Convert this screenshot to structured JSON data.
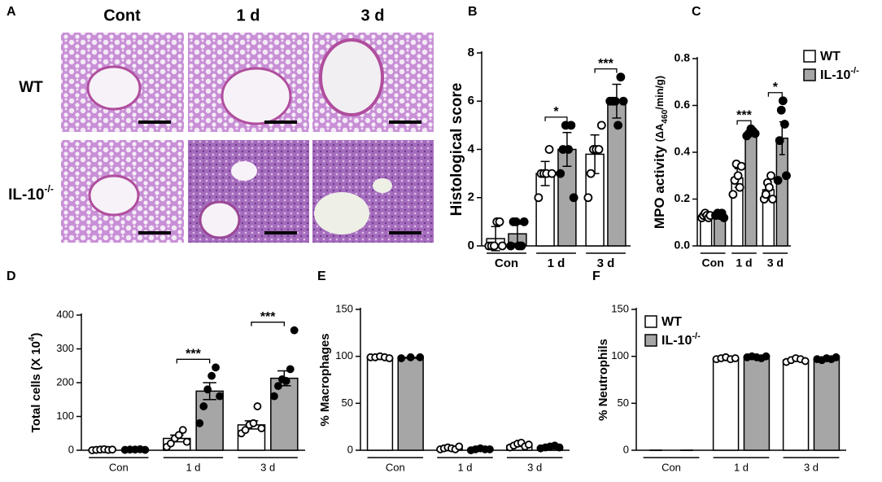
{
  "histology": {
    "panel_label": "A",
    "columns": [
      "Cont",
      "1 d",
      "3 d"
    ],
    "rows": [
      {
        "name": "WT"
      },
      {
        "name": "IL-10",
        "name_sup": "-/-"
      }
    ]
  },
  "chart_data": [
    {
      "type": "bar",
      "panel_label": "B",
      "ylabel": [
        {
          "text": "Histological score"
        }
      ],
      "categories": [
        "Con",
        "1 d",
        "3 d"
      ],
      "ylim": [
        0,
        8
      ],
      "yticks": [
        0,
        2,
        4,
        6,
        8
      ],
      "series": [
        {
          "name": "WT",
          "color": "#ffffff",
          "values": [
            0.3,
            3.0,
            3.8
          ],
          "errors": [
            0.5,
            0.5,
            0.8
          ],
          "points": [
            [
              0,
              0,
              0,
              1,
              1,
              0
            ],
            [
              2,
              3,
              3,
              3,
              4,
              3
            ],
            [
              2,
              3,
              4,
              4,
              4,
              5
            ]
          ]
        },
        {
          "name": "IL-10",
          "name_sup": "-/-",
          "color": "#a6a6a6",
          "values": [
            0.5,
            4.0,
            6.0
          ],
          "errors": [
            0.4,
            0.7,
            0.7
          ],
          "points": [
            [
              0,
              1,
              1,
              0,
              0,
              1
            ],
            [
              3,
              4,
              5,
              4,
              5,
              2
            ],
            [
              6,
              6,
              6,
              5,
              7,
              6
            ]
          ]
        }
      ],
      "annotations": [
        {
          "group": 1,
          "text": "*"
        },
        {
          "group": 2,
          "text": "***"
        }
      ],
      "legend": false
    },
    {
      "type": "bar",
      "panel_label": "C",
      "ylabel": [
        {
          "text": "MPO activity "
        },
        {
          "text": "(ΔA",
          "style": "small"
        },
        {
          "text": "460",
          "style": "sub"
        },
        {
          "text": "/min/g)",
          "style": "small"
        }
      ],
      "categories": [
        "Con",
        "1 d",
        "3 d"
      ],
      "ylim": [
        0,
        0.8
      ],
      "yticks": [
        {
          "value": 0,
          "label": "0.0"
        },
        0.2,
        0.4,
        0.6,
        0.8
      ],
      "series": [
        {
          "name": "WT",
          "color": "#ffffff",
          "values": [
            0.13,
            0.29,
            0.24
          ],
          "errors": [
            0.01,
            0.04,
            0.03
          ],
          "points": [
            [
              0.12,
              0.13,
              0.14,
              0.13,
              0.12,
              0.13
            ],
            [
              0.22,
              0.28,
              0.35,
              0.3,
              0.25,
              0.34
            ],
            [
              0.2,
              0.22,
              0.27,
              0.25,
              0.3,
              0.2
            ]
          ]
        },
        {
          "name": "IL-10",
          "name_sup": "-/-",
          "color": "#a6a6a6",
          "values": [
            0.135,
            0.48,
            0.46
          ],
          "errors": [
            0.01,
            0.01,
            0.07
          ],
          "points": [
            [
              0.13,
              0.14,
              0.13,
              0.14,
              0.12
            ],
            [
              0.47,
              0.48,
              0.5,
              0.49,
              0.48
            ],
            [
              0.28,
              0.45,
              0.58,
              0.62,
              0.52,
              0.3
            ]
          ]
        }
      ],
      "annotations": [
        {
          "group": 1,
          "text": "***"
        },
        {
          "group": 2,
          "text": "*"
        }
      ],
      "legend": true
    },
    {
      "type": "bar",
      "panel_label": "D",
      "ylabel": [
        {
          "text": "Total cells (X 10"
        },
        {
          "text": "4",
          "style": "sup"
        },
        {
          "text": ")"
        }
      ],
      "categories": [
        "Con",
        "1 d",
        "3 d"
      ],
      "ylim": [
        0,
        400
      ],
      "yticks": [
        0,
        100,
        200,
        300,
        400
      ],
      "series": [
        {
          "name": "WT",
          "color": "#ffffff",
          "values": [
            2,
            35,
            75
          ],
          "errors": [
            1,
            10,
            12
          ],
          "points": [
            [
              0,
              1,
              2,
              3,
              1,
              2
            ],
            [
              10,
              20,
              35,
              45,
              60,
              25
            ],
            [
              50,
              60,
              75,
              80,
              130,
              65
            ]
          ]
        },
        {
          "name": "IL-10",
          "name_sup": "-/-",
          "color": "#a6a6a6",
          "values": [
            2,
            175,
            213
          ],
          "errors": [
            1,
            25,
            22
          ],
          "points": [
            [
              1,
              2,
              2,
              3,
              1
            ],
            [
              80,
              130,
              180,
              220,
              245,
              160
            ],
            [
              160,
              190,
              210,
              205,
              240,
              355
            ]
          ]
        }
      ],
      "annotations": [
        {
          "group": 1,
          "text": "***"
        },
        {
          "group": 2,
          "text": "***"
        }
      ],
      "legend": false
    },
    {
      "type": "bar",
      "panel_label": "E",
      "ylabel": [
        {
          "text": "% Macrophages"
        }
      ],
      "categories": [
        "Con",
        "1 d",
        "3 d"
      ],
      "ylim": [
        0,
        150
      ],
      "yticks": [
        0,
        50,
        100,
        150
      ],
      "series": [
        {
          "name": "WT",
          "color": "#ffffff",
          "values": [
            99,
            2,
            5
          ],
          "errors": [
            0.5,
            0.6,
            1
          ],
          "points": [
            [
              99,
              99,
              100,
              99,
              98
            ],
            [
              1,
              2,
              3,
              2,
              1,
              4
            ],
            [
              3,
              5,
              7,
              8,
              4,
              6
            ]
          ]
        },
        {
          "name": "IL-10",
          "name_sup": "-/-",
          "color": "#a6a6a6",
          "values": [
            98.5,
            1,
            3
          ],
          "errors": [
            0.4,
            0.4,
            0.6
          ],
          "points": [
            [
              98,
              99,
              99
            ],
            [
              0,
              1,
              2,
              1,
              1
            ],
            [
              2,
              3,
              4,
              5,
              3
            ]
          ]
        }
      ],
      "annotations": [],
      "legend": false
    },
    {
      "type": "bar",
      "panel_label": "F",
      "ylabel": [
        {
          "text": "% Neutrophils"
        }
      ],
      "categories": [
        "Con",
        "1 d",
        "3 d"
      ],
      "ylim": [
        0,
        150
      ],
      "yticks": [
        0,
        50,
        100,
        150
      ],
      "series": [
        {
          "name": "WT",
          "color": "#ffffff",
          "values": [
            0,
            98,
            96
          ],
          "errors": [
            0,
            0.6,
            1
          ],
          "points": [
            [],
            [
              97,
              98,
              99,
              97,
              98
            ],
            [
              94,
              96,
              98,
              97,
              95
            ]
          ]
        },
        {
          "name": "IL-10",
          "name_sup": "-/-",
          "color": "#a6a6a6",
          "values": [
            0,
            99,
            97
          ],
          "errors": [
            0,
            0.4,
            0.6
          ],
          "points": [
            [],
            [
              99,
              100,
              99,
              98,
              100
            ],
            [
              97,
              96,
              98,
              97,
              99
            ]
          ]
        }
      ],
      "annotations": [],
      "legend": true
    }
  ]
}
